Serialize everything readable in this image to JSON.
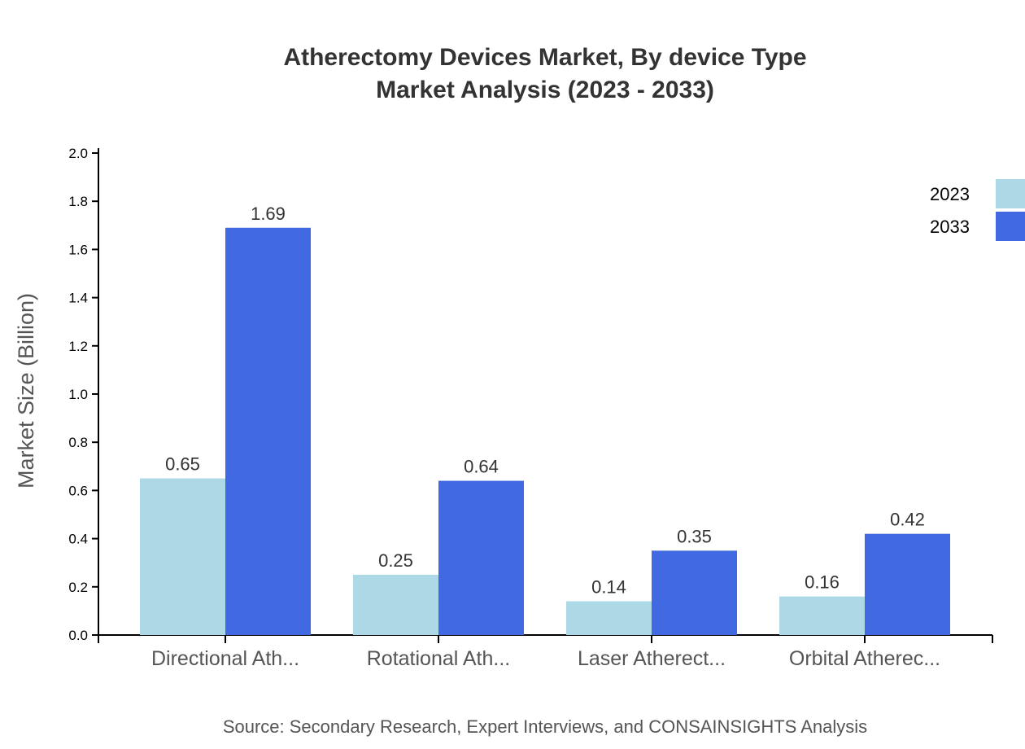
{
  "chart_data": {
    "type": "bar",
    "title": "Atherectomy Devices Market, By device Type",
    "subtitle": "Market Analysis (2023 - 2033)",
    "xlabel": "",
    "ylabel": "Market Size (Billion)",
    "ylim": [
      0,
      2.0
    ],
    "yticks": [
      "0.0",
      "0.2",
      "0.4",
      "0.6",
      "0.8",
      "1.0",
      "1.2",
      "1.4",
      "1.6",
      "1.8",
      "2.0"
    ],
    "categories": [
      "Directional Ath...",
      "Rotational Ath...",
      "Laser Atherect...",
      "Orbital Atherec..."
    ],
    "series": [
      {
        "name": "2023",
        "color": "#add8e6",
        "values": [
          0.65,
          0.25,
          0.14,
          0.16
        ],
        "labels": [
          "0.65",
          "0.25",
          "0.14",
          "0.16"
        ]
      },
      {
        "name": "2033",
        "color": "#4169e1",
        "values": [
          1.69,
          0.64,
          0.35,
          0.42
        ],
        "labels": [
          "1.69",
          "0.64",
          "0.35",
          "0.42"
        ]
      }
    ],
    "grid": false,
    "legend_position": "top-right",
    "source": "Source: Secondary Research, Expert Interviews, and CONSAINSIGHTS Analysis"
  }
}
